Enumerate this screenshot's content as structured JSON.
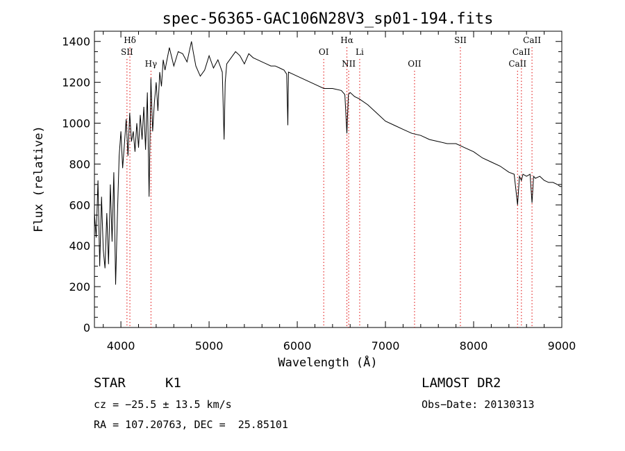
{
  "chart_data": {
    "type": "line",
    "title": "spec-56365-GAC106N28V3_sp01-194.fits",
    "xlabel": "Wavelength (Å)",
    "ylabel": "Flux (relative)",
    "xlim": [
      3700,
      9000
    ],
    "ylim": [
      0,
      1450
    ],
    "xticks": [
      4000,
      5000,
      6000,
      7000,
      8000,
      9000
    ],
    "yticks": [
      0,
      200,
      400,
      600,
      800,
      1000,
      1200,
      1400
    ],
    "grid": false,
    "series": [
      {
        "x": [
          3700,
          3720,
          3740,
          3760,
          3780,
          3800,
          3820,
          3840,
          3860,
          3880,
          3900,
          3920,
          3940,
          3960,
          3980,
          4000,
          4020,
          4040,
          4060,
          4080,
          4100,
          4120,
          4140,
          4160,
          4180,
          4200,
          4220,
          4240,
          4260,
          4280,
          4300,
          4320,
          4340,
          4360,
          4380,
          4400,
          4420,
          4440,
          4460,
          4480,
          4500,
          4550,
          4600,
          4650,
          4700,
          4750,
          4800,
          4820,
          4850,
          4900,
          4950,
          5000,
          5050,
          5100,
          5150,
          5170,
          5183,
          5200,
          5250,
          5300,
          5350,
          5400,
          5450,
          5500,
          5550,
          5600,
          5650,
          5700,
          5750,
          5800,
          5850,
          5880,
          5893,
          5900,
          5950,
          6000,
          6100,
          6200,
          6300,
          6400,
          6500,
          6540,
          6563,
          6580,
          6600,
          6650,
          6700,
          6800,
          6900,
          7000,
          7100,
          7200,
          7300,
          7400,
          7500,
          7600,
          7700,
          7800,
          7900,
          8000,
          8100,
          8200,
          8300,
          8400,
          8460,
          8498,
          8520,
          8542,
          8560,
          8600,
          8640,
          8662,
          8680,
          8700,
          8750,
          8800,
          8850,
          8900,
          8950,
          8980,
          9000
        ],
        "y": [
          560,
          440,
          720,
          300,
          640,
          380,
          290,
          560,
          310,
          700,
          420,
          760,
          210,
          540,
          840,
          960,
          780,
          900,
          1020,
          840,
          1050,
          910,
          960,
          860,
          1000,
          880,
          1040,
          920,
          1080,
          870,
          1150,
          640,
          1220,
          960,
          1100,
          1200,
          1060,
          1250,
          1180,
          1310,
          1260,
          1370,
          1280,
          1350,
          1340,
          1300,
          1400,
          1350,
          1280,
          1230,
          1260,
          1330,
          1270,
          1310,
          1250,
          920,
          1200,
          1290,
          1320,
          1350,
          1330,
          1290,
          1340,
          1320,
          1310,
          1300,
          1290,
          1280,
          1280,
          1270,
          1260,
          1240,
          990,
          1250,
          1240,
          1230,
          1210,
          1190,
          1170,
          1170,
          1160,
          1140,
          950,
          1140,
          1150,
          1130,
          1120,
          1090,
          1050,
          1010,
          990,
          970,
          950,
          940,
          920,
          910,
          900,
          900,
          880,
          860,
          830,
          810,
          790,
          760,
          750,
          600,
          740,
          720,
          750,
          740,
          750,
          610,
          740,
          730,
          740,
          720,
          710,
          710,
          700,
          690,
          690
        ]
      }
    ],
    "annotations": [
      {
        "label": "Hδ",
        "x": 4102,
        "row": 1
      },
      {
        "label": "SII",
        "x": 4069,
        "row": 2
      },
      {
        "label": "Hγ",
        "x": 4341,
        "row": 3
      },
      {
        "label": "OI",
        "x": 6300,
        "row": 2
      },
      {
        "label": "Hα",
        "x": 6563,
        "row": 1
      },
      {
        "label": "NII",
        "x": 6583,
        "row": 3
      },
      {
        "label": "Li",
        "x": 6708,
        "row": 2
      },
      {
        "label": "OII",
        "x": 7330,
        "row": 3
      },
      {
        "label": "SII",
        "x": 7850,
        "row": 1
      },
      {
        "label": "CaII",
        "x": 8662,
        "row": 1
      },
      {
        "label": "CaII",
        "x": 8542,
        "row": 2
      },
      {
        "label": "CaII",
        "x": 8498,
        "row": 3
      }
    ]
  },
  "info": {
    "class_label": "STAR",
    "subclass_label": "K1",
    "survey_label": "LAMOST DR2",
    "cz_text": "cz = −25.5 ± 13.5 km/s",
    "obs_date": "Obs−Date: 20130313",
    "radec_text": "RA = 107.20763, DEC =  25.85101"
  }
}
